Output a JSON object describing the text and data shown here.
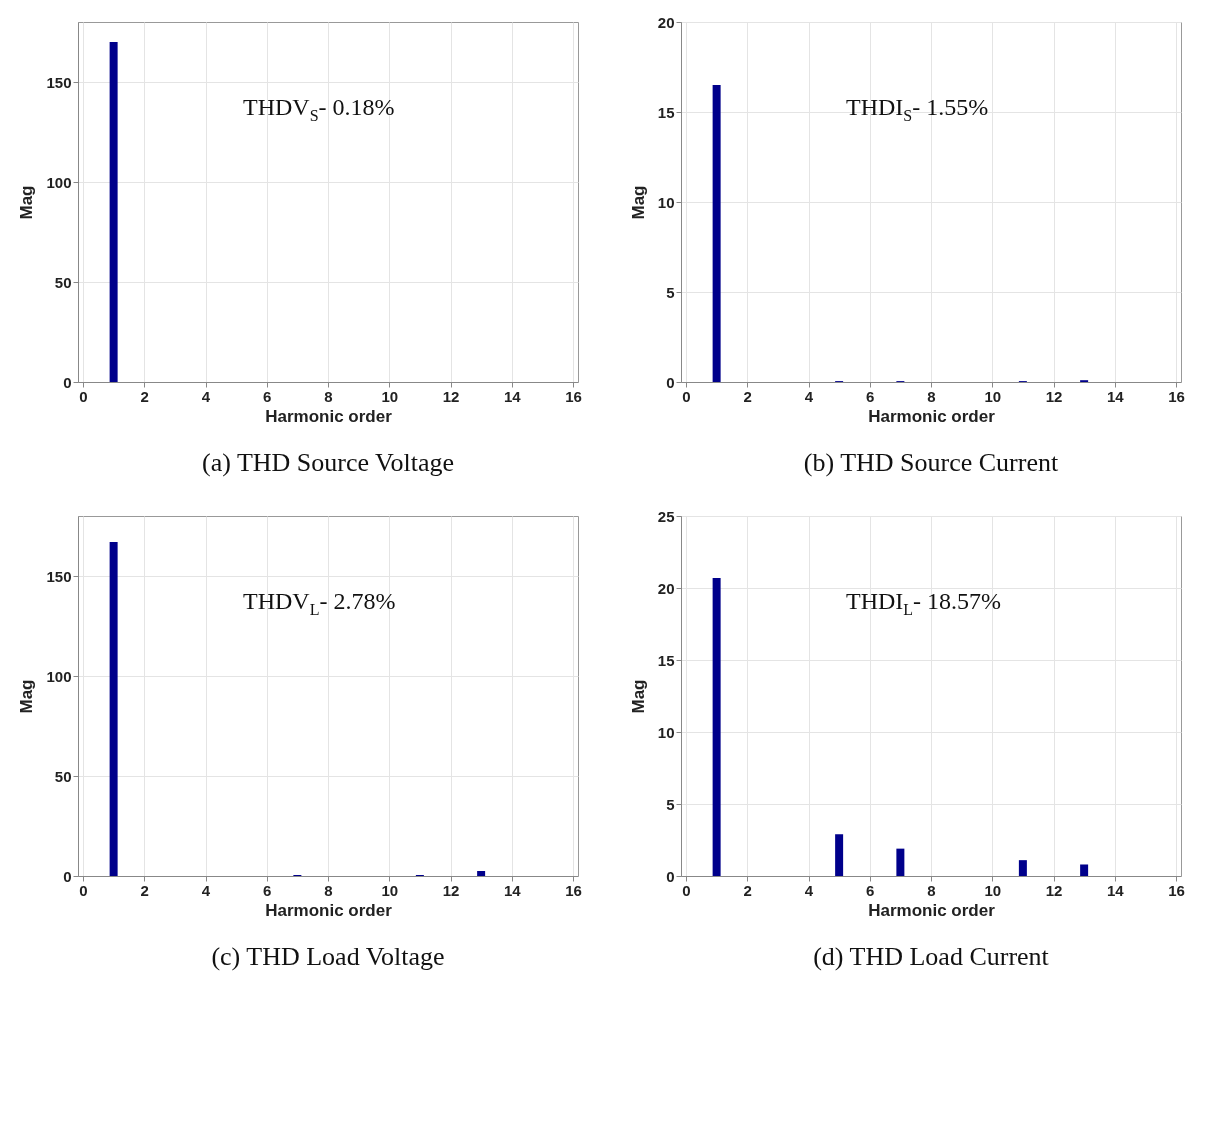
{
  "chart_data": [
    {
      "type": "bar",
      "title": "(a) THD Source Voltage",
      "xlabel": "Harmonic order",
      "ylabel": "Mag",
      "x": [
        1
      ],
      "values": [
        170
      ],
      "color": "#00008b",
      "xlim": [
        0,
        16
      ],
      "xticks": [
        0,
        2,
        4,
        6,
        8,
        10,
        12,
        14,
        16
      ],
      "ylim": [
        0,
        180
      ],
      "yticks": [
        0,
        50,
        100,
        150
      ],
      "grid": true,
      "annotations": [
        "THDV$_{S}$- 0.18%"
      ]
    },
    {
      "type": "bar",
      "title": "(b) THD Source Current",
      "xlabel": "Harmonic order",
      "ylabel": "Mag",
      "x": [
        1,
        5,
        7,
        11,
        13
      ],
      "values": [
        16.5,
        0.05,
        0.05,
        0.05,
        0.1
      ],
      "color": "#00008b",
      "xlim": [
        0,
        16
      ],
      "xticks": [
        0,
        2,
        4,
        6,
        8,
        10,
        12,
        14,
        16
      ],
      "ylim": [
        0,
        20
      ],
      "yticks": [
        0,
        5,
        10,
        15,
        20
      ],
      "grid": true,
      "annotations": [
        "THDI$_{S}$- 1.55%"
      ]
    },
    {
      "type": "bar",
      "title": "(c) THD Load Voltage",
      "xlabel": "Harmonic order",
      "ylabel": "Mag",
      "x": [
        1,
        7,
        11,
        13
      ],
      "values": [
        167,
        0.5,
        0.5,
        2.5
      ],
      "color": "#00008b",
      "xlim": [
        0,
        16
      ],
      "xticks": [
        0,
        2,
        4,
        6,
        8,
        10,
        12,
        14,
        16
      ],
      "ylim": [
        0,
        180
      ],
      "yticks": [
        0,
        50,
        100,
        150
      ],
      "grid": true,
      "annotations": [
        "THDV$_{L}$- 2.78%"
      ]
    },
    {
      "type": "bar",
      "title": "(d) THD Load Current",
      "xlabel": "Harmonic order",
      "ylabel": "Mag",
      "x": [
        1,
        5,
        7,
        11,
        13
      ],
      "values": [
        20.7,
        2.9,
        1.9,
        1.1,
        0.8
      ],
      "color": "#00008b",
      "xlim": [
        0,
        16
      ],
      "xticks": [
        0,
        2,
        4,
        6,
        8,
        10,
        12,
        14,
        16
      ],
      "ylim": [
        0,
        25
      ],
      "yticks": [
        0,
        5,
        10,
        15,
        20,
        25
      ],
      "grid": true,
      "annotations": [
        "THDI$_{L}$- 18.57%"
      ]
    }
  ]
}
